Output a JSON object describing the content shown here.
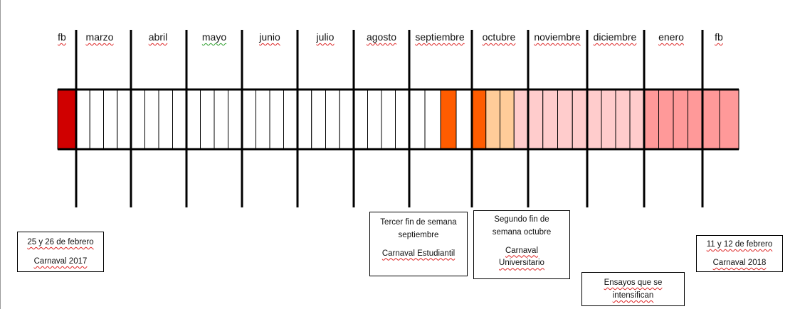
{
  "months": [
    {
      "label": "fb",
      "center": 87,
      "spell": "red"
    },
    {
      "label": "marzo",
      "center": 140,
      "spell": "red"
    },
    {
      "label": "abril",
      "center": 222,
      "spell": "red"
    },
    {
      "label": "mayo",
      "center": 301,
      "spell": "green"
    },
    {
      "label": "junio",
      "center": 379,
      "spell": "red"
    },
    {
      "label": "julio",
      "center": 457,
      "spell": "red"
    },
    {
      "label": "agosto",
      "center": 536,
      "spell": "red"
    },
    {
      "label": "septiembre",
      "center": 618,
      "spell": "red"
    },
    {
      "label": "octubre",
      "center": 701,
      "spell": "red"
    },
    {
      "label": "noviembre",
      "center": 783,
      "spell": "red"
    },
    {
      "label": "diciembre",
      "center": 864,
      "spell": "red"
    },
    {
      "label": "enero",
      "center": 943,
      "spell": "red"
    },
    {
      "label": "fb",
      "center": 1010,
      "spell": "red"
    }
  ],
  "week_fills": [
    "#d00000",
    "#ffffff",
    "#ffffff",
    "#ffffff",
    "#ffffff",
    "#ffffff",
    "#ffffff",
    "#ffffff",
    "#ffffff",
    "#ffffff",
    "#ffffff",
    "#ffffff",
    "#ffffff",
    "#ffffff",
    "#ffffff",
    "#ffffff",
    "#ffffff",
    "#ffffff",
    "#ffffff",
    "#ffffff",
    "#ffffff",
    "#ffffff",
    "#ffffff",
    "#ffffff",
    "#ffffff",
    "#ffffff",
    "#ffffff",
    "#ff5c00",
    "#ffffff",
    "#ff5c00",
    "#ffcc99",
    "#ffcc99",
    "#ffcccc",
    "#ffcccc",
    "#ffcccc",
    "#ffcccc",
    "#ffcccc",
    "#ffcccc",
    "#ffcccc",
    "#ffcccc",
    "#ffcccc",
    "#ff9999",
    "#ff9999",
    "#ff9999",
    "#ff9999",
    "#ff9999",
    "#ff9999",
    "#d00000"
  ],
  "colors": {
    "carnaval_red": "#d00000",
    "orange": "#ff5c00",
    "peach": "#ffcc99",
    "light_pink": "#ffcccc",
    "pink": "#ff9999"
  },
  "notes": {
    "carnaval_2017": {
      "line1": "25 y 26 de febrero",
      "line2": "Carnaval 2017"
    },
    "carnaval_estudiantil": {
      "line1": "Tercer fin de semana  septiembre",
      "line2": "Carnaval Estudiantil"
    },
    "carnaval_universitario": {
      "line1": "Segundo fin de semana octubre",
      "line2": "Carnaval Universitario"
    },
    "ensayos": {
      "line1": "Ensayos que se intensifican"
    },
    "carnaval_2018": {
      "line1": "11 y 12 de febrero",
      "line2": "Carnaval 2018"
    }
  }
}
